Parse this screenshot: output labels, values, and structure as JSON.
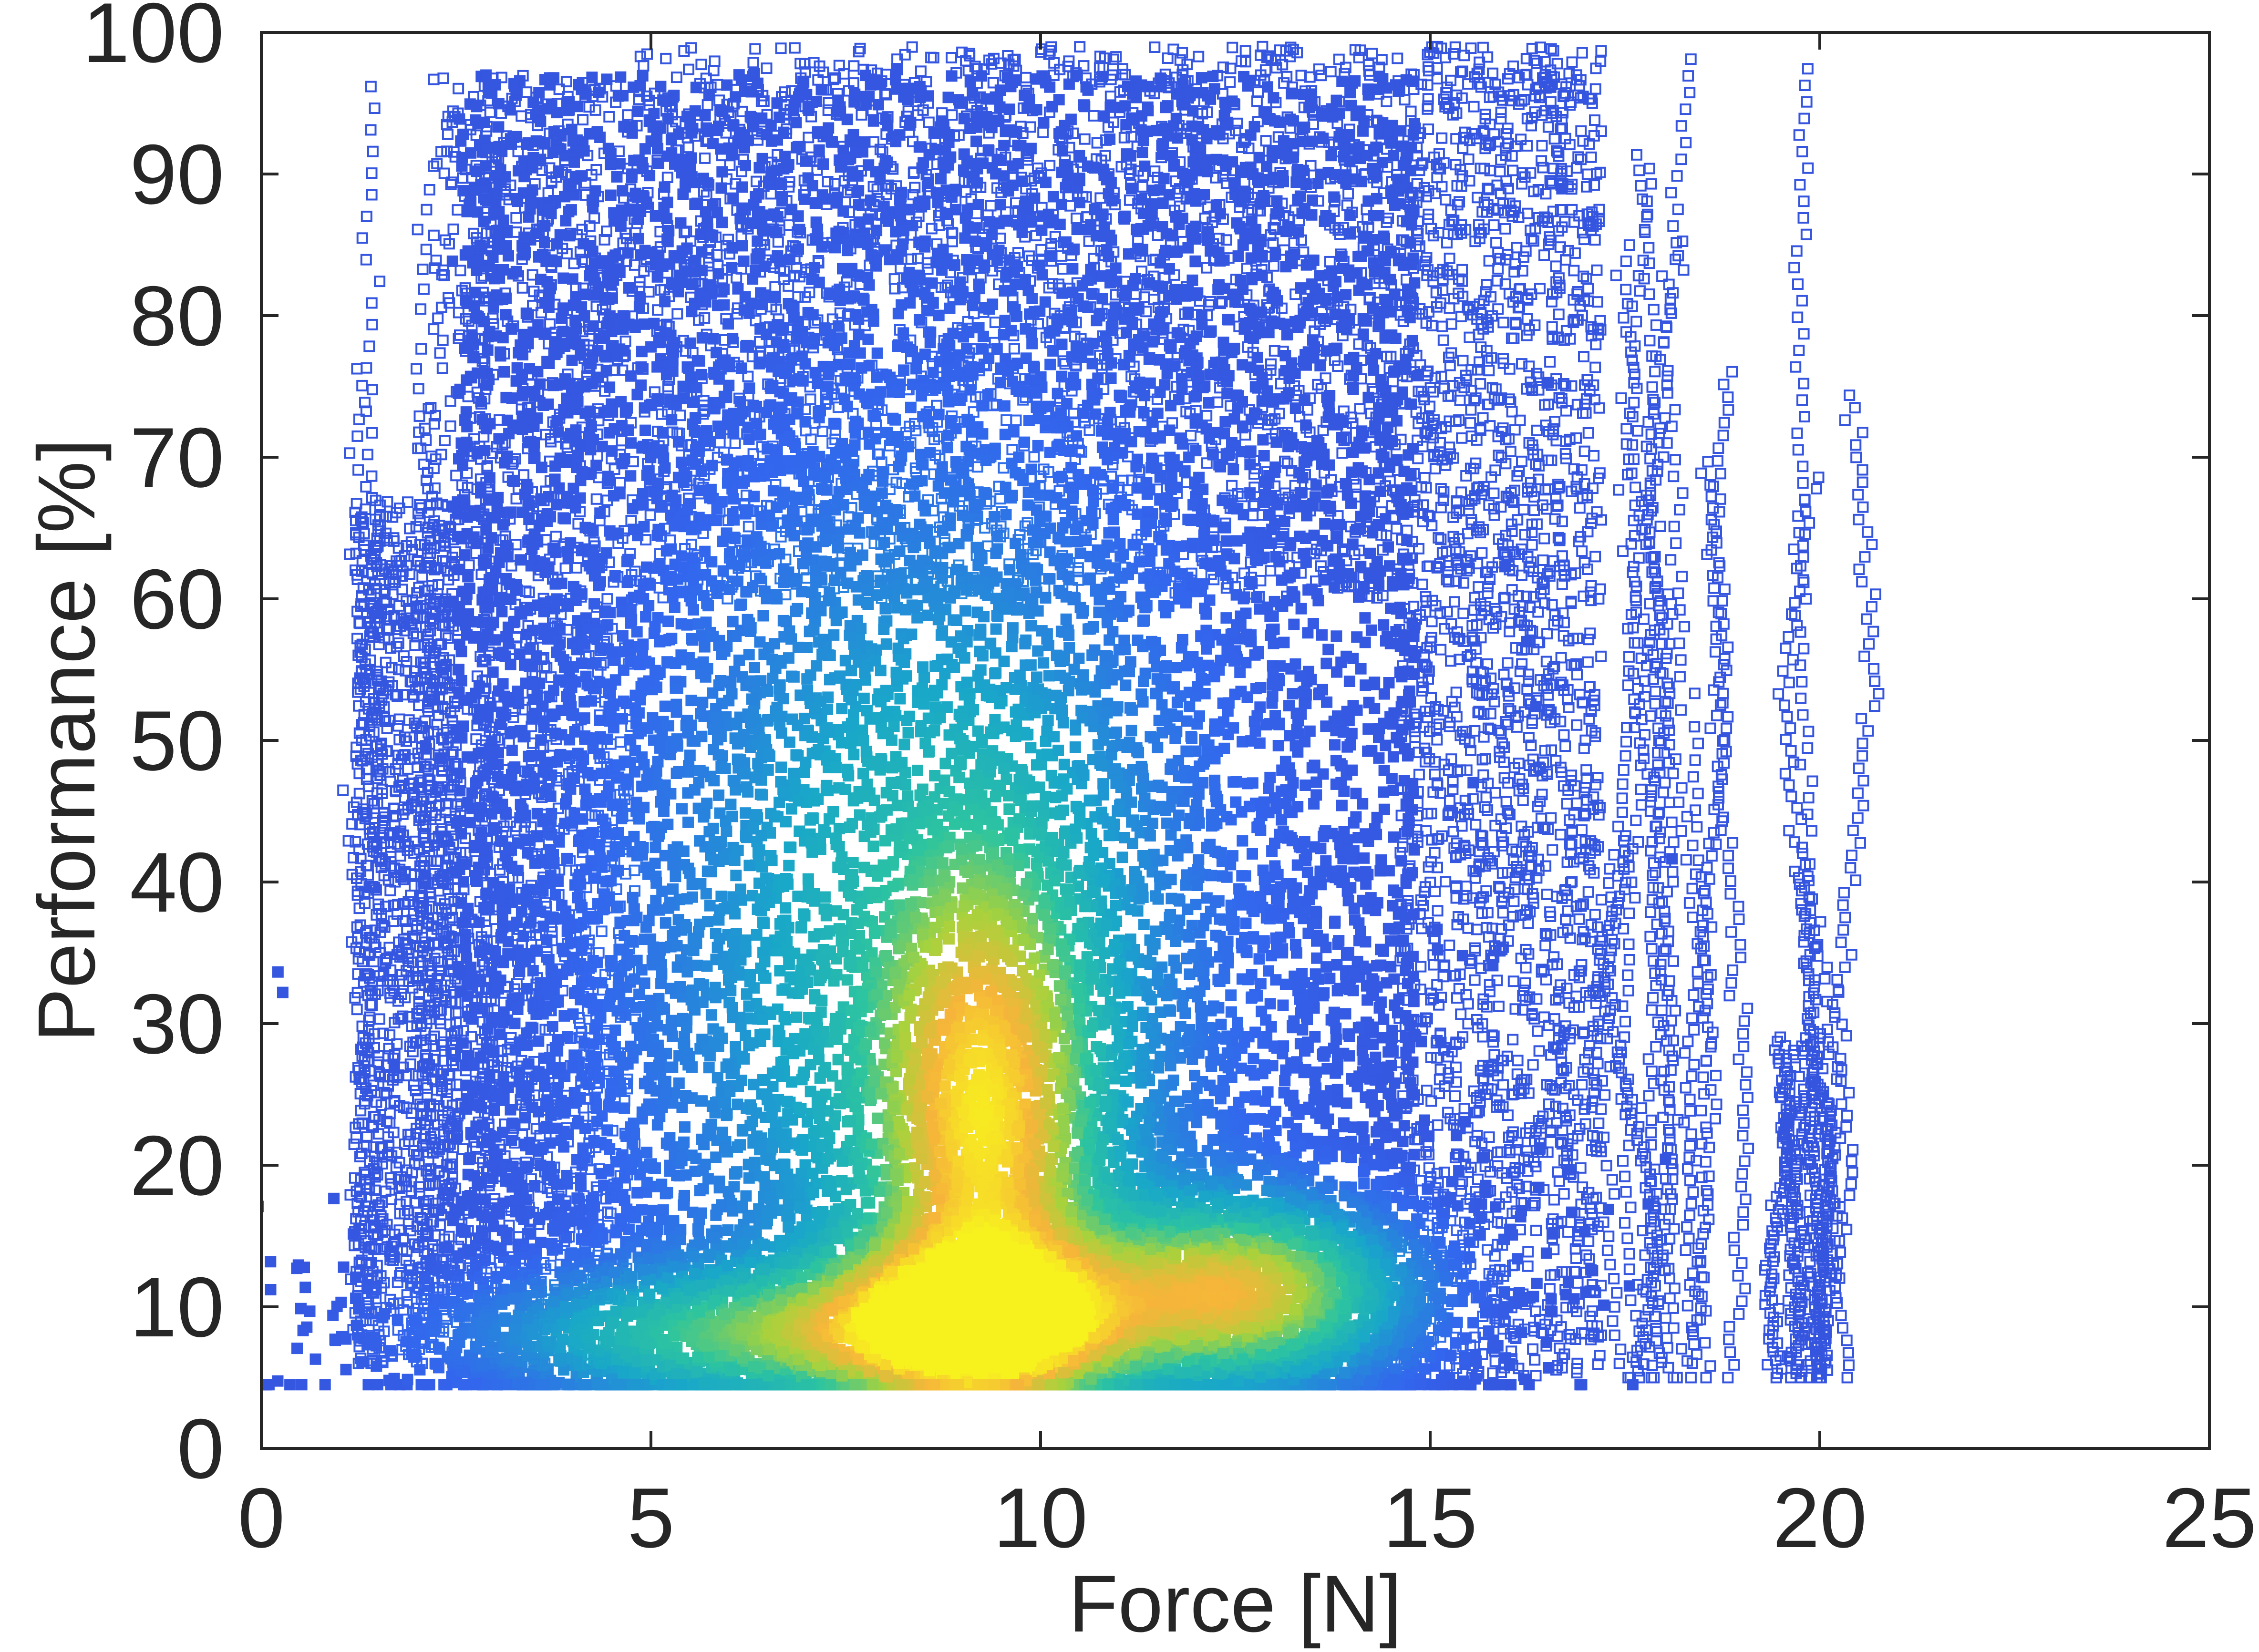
{
  "chart_data": {
    "type": "scatter",
    "title": "",
    "xlabel": "Force [N]",
    "ylabel": "Performance [%]",
    "xlim": [
      0,
      25
    ],
    "ylim": [
      0,
      100
    ],
    "x_ticks": [
      "0",
      "5",
      "10",
      "15",
      "20",
      "25"
    ],
    "y_ticks": [
      "0",
      "10",
      "20",
      "30",
      "40",
      "50",
      "60",
      "70",
      "80",
      "90",
      "100"
    ],
    "grid": false,
    "legend": "none",
    "marker": "square-open",
    "color_scale": [
      "#3b2bb8",
      "#3366ee",
      "#19a7c9",
      "#2cc4a0",
      "#a8d23c",
      "#f6b53a",
      "#f7f21e"
    ],
    "density_clusters": [
      {
        "x": 9.2,
        "y": 9,
        "sx": 1.2,
        "sy": 3.5,
        "density": 1.0
      },
      {
        "x": 12.5,
        "y": 11,
        "sx": 1.3,
        "sy": 4,
        "density": 0.75
      },
      {
        "x": 9.3,
        "y": 22,
        "sx": 0.9,
        "sy": 12,
        "density": 0.7
      },
      {
        "x": 8.5,
        "y": 35,
        "sx": 2.2,
        "sy": 20,
        "density": 0.35
      },
      {
        "x": 6.5,
        "y": 8,
        "sx": 2.2,
        "sy": 3,
        "density": 0.45
      }
    ],
    "point_regions": [
      {
        "x": [
          2.5,
          14.8
        ],
        "y": [
          5,
          97
        ],
        "density": "high"
      },
      {
        "x": [
          4.8,
          14.6
        ],
        "y": [
          60,
          99
        ],
        "density": "medium"
      },
      {
        "x": [
          1.2,
          2.5
        ],
        "y": [
          6,
          67
        ],
        "density": "sparse"
      },
      {
        "x": [
          2.2,
          4.8
        ],
        "y": [
          10,
          97
        ],
        "density": "sparse"
      },
      {
        "x": [
          14.6,
          17.2
        ],
        "y": [
          5,
          99
        ],
        "density": "medium"
      },
      {
        "x": [
          17.2,
          20.4
        ],
        "y": [
          5,
          99
        ],
        "density": "traces"
      }
    ]
  }
}
